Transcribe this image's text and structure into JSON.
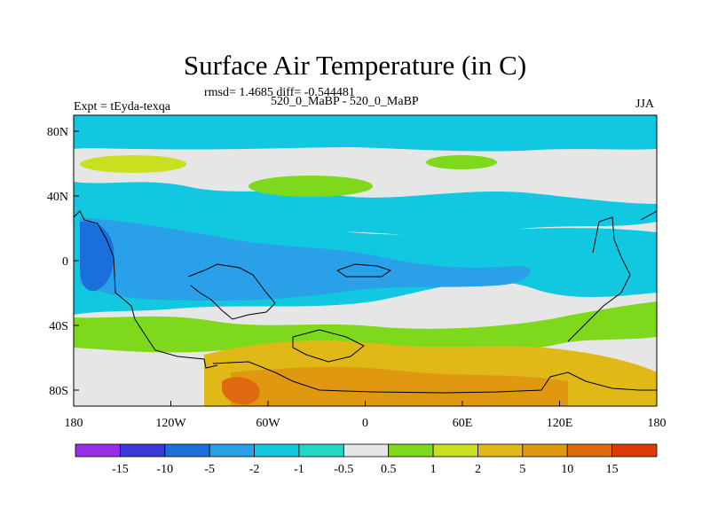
{
  "title": "Surface Air Temperature (in C)",
  "stats": "rmsd= 1.4685 diff= -0.544481",
  "experiment": "Expt = tEyda-texqa",
  "subtitle": "520_0_MaBP - 520_0_MaBP",
  "season": "JJA",
  "map": {
    "x_ticks": [
      "180",
      "120W",
      "60W",
      "0",
      "60E",
      "120E",
      "180"
    ],
    "y_ticks": [
      "80N",
      "40N",
      "0",
      "40S",
      "80S"
    ]
  },
  "colorbar": {
    "colors": [
      "#9a2ee8",
      "#3a3ad8",
      "#1a6fdc",
      "#2aa0e8",
      "#12c8e0",
      "#22d8c4",
      "#e6e6e6",
      "#7ed81c",
      "#c8e020",
      "#e0b818",
      "#e09810",
      "#e06a10",
      "#e03a0a"
    ],
    "labels": [
      "-15",
      "-10",
      "-5",
      "-2",
      "-1",
      "-0.5",
      "0.5",
      "1",
      "2",
      "5",
      "10",
      "15"
    ]
  },
  "palette": {
    "neutral": "#e6e6e6",
    "cyan": "#12c8e0",
    "teal": "#22d8c4",
    "lightblue": "#2aa0e8",
    "blue": "#1a6fdc",
    "green": "#7ed81c",
    "yellowgreen": "#c8e020",
    "gold": "#e0b818",
    "orange": "#e09810",
    "darkorange": "#e06a10",
    "red": "#e03a0a"
  }
}
